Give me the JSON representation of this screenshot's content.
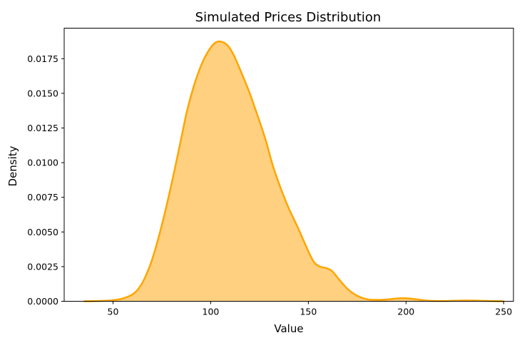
{
  "chart_data": {
    "type": "area",
    "title": "Simulated Prices Distribution",
    "xlabel": "Value",
    "ylabel": "Density",
    "xlim": [
      25,
      255
    ],
    "ylim": [
      0,
      0.0197
    ],
    "xticks": [
      50,
      100,
      150,
      200,
      250
    ],
    "yticks": [
      0.0,
      0.0025,
      0.005,
      0.0075,
      0.01,
      0.0125,
      0.015,
      0.0175
    ],
    "ytick_labels": [
      "0.0000",
      "0.0025",
      "0.0050",
      "0.0075",
      "0.0100",
      "0.0125",
      "0.0150",
      "0.0175"
    ],
    "grid": false,
    "series": [
      {
        "x": [
          35,
          40,
          45,
          50,
          55,
          60,
          63,
          66,
          70,
          75,
          80,
          85,
          88,
          92,
          96,
          100,
          103,
          106,
          109,
          112,
          116,
          120,
          124,
          128,
          132,
          136,
          140,
          145,
          150,
          153,
          156,
          159,
          162,
          165,
          170,
          175,
          180,
          185,
          190,
          195,
          200,
          205,
          210,
          215,
          220,
          225,
          230,
          235,
          240,
          245,
          250
        ],
        "y": [
          0.0,
          1e-05,
          3e-05,
          8e-05,
          0.0002,
          0.0005,
          0.0009,
          0.0016,
          0.003,
          0.0055,
          0.0085,
          0.0118,
          0.0138,
          0.0158,
          0.0173,
          0.0183,
          0.0187,
          0.0187,
          0.0184,
          0.0177,
          0.0164,
          0.015,
          0.0134,
          0.0117,
          0.0097,
          0.0081,
          0.0067,
          0.0052,
          0.0036,
          0.0028,
          0.0025,
          0.0024,
          0.0022,
          0.0017,
          0.0009,
          0.0004,
          0.00015,
          0.0001,
          0.00012,
          0.0002,
          0.00022,
          0.00015,
          6e-05,
          2e-05,
          2e-05,
          4e-05,
          6e-05,
          5e-05,
          3e-05,
          1e-05,
          0.0
        ]
      }
    ]
  },
  "colors": {
    "line": "#FFA500",
    "fill": "#FFD07F",
    "axis": "#000000"
  }
}
